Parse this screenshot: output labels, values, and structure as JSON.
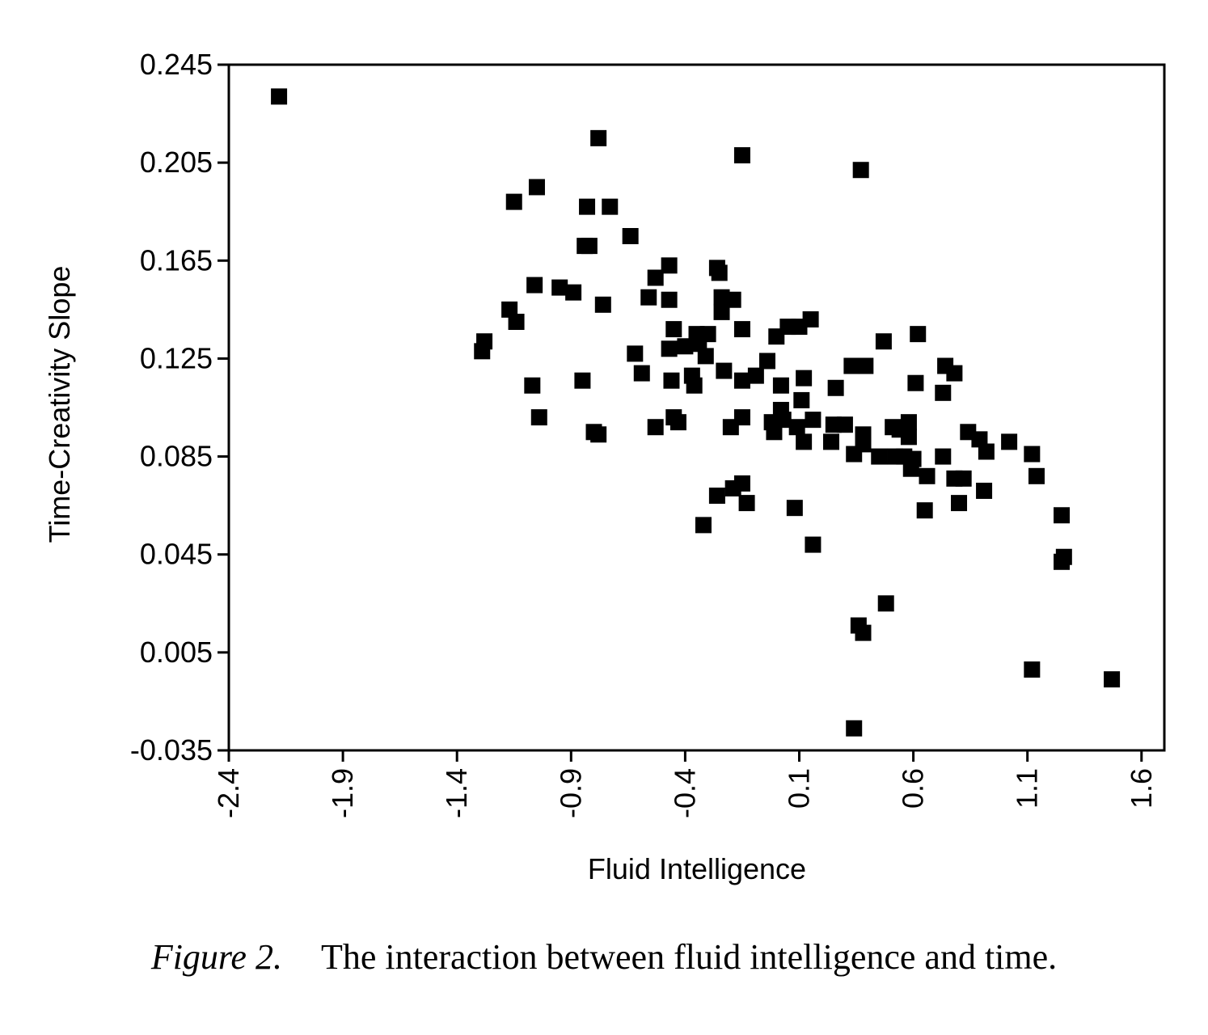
{
  "chart_data": {
    "type": "scatter",
    "xlabel": "Fluid Intelligence",
    "ylabel": "Time-Creativity Slope",
    "xlim": [
      -2.4,
      1.7
    ],
    "ylim": [
      -0.035,
      0.245
    ],
    "x_ticks": [
      "-2.4",
      "-1.9",
      "-1.4",
      "-0.9",
      "-0.4",
      "0.1",
      "0.6",
      "1.1",
      "1.6"
    ],
    "y_ticks": [
      "0.245",
      "0.205",
      "0.165",
      "0.125",
      "0.085",
      "0.045",
      "0.005",
      "-0.035"
    ],
    "grid": false,
    "legend": "none",
    "marker": "square",
    "marker_color": "#000000",
    "points": [
      [
        -2.18,
        0.232
      ],
      [
        -0.78,
        0.215
      ],
      [
        -0.15,
        0.208
      ],
      [
        0.37,
        0.202
      ],
      [
        -1.05,
        0.195
      ],
      [
        -1.15,
        0.189
      ],
      [
        -0.83,
        0.187
      ],
      [
        -0.73,
        0.187
      ],
      [
        -0.64,
        0.175
      ],
      [
        -0.84,
        0.171
      ],
      [
        -0.82,
        0.171
      ],
      [
        -0.47,
        0.163
      ],
      [
        -0.26,
        0.162
      ],
      [
        -0.25,
        0.16
      ],
      [
        -0.53,
        0.158
      ],
      [
        -1.06,
        0.155
      ],
      [
        -0.95,
        0.154
      ],
      [
        -0.89,
        0.152
      ],
      [
        -0.56,
        0.15
      ],
      [
        -0.47,
        0.149
      ],
      [
        -0.24,
        0.15
      ],
      [
        -0.19,
        0.149
      ],
      [
        -0.76,
        0.147
      ],
      [
        -1.17,
        0.145
      ],
      [
        -0.24,
        0.144
      ],
      [
        -1.14,
        0.14
      ],
      [
        0.15,
        0.141
      ],
      [
        -0.45,
        0.137
      ],
      [
        -0.15,
        0.137
      ],
      [
        0.05,
        0.138
      ],
      [
        0.1,
        0.138
      ],
      [
        -0.35,
        0.135
      ],
      [
        -0.3,
        0.135
      ],
      [
        0.0,
        0.134
      ],
      [
        0.62,
        0.135
      ],
      [
        -1.28,
        0.132
      ],
      [
        -0.34,
        0.131
      ],
      [
        -0.4,
        0.13
      ],
      [
        0.47,
        0.132
      ],
      [
        -1.29,
        0.128
      ],
      [
        -0.47,
        0.129
      ],
      [
        -0.62,
        0.127
      ],
      [
        -0.31,
        0.126
      ],
      [
        -0.04,
        0.124
      ],
      [
        0.33,
        0.122
      ],
      [
        0.39,
        0.122
      ],
      [
        0.74,
        0.122
      ],
      [
        -0.23,
        0.12
      ],
      [
        -0.59,
        0.119
      ],
      [
        -0.37,
        0.118
      ],
      [
        -0.09,
        0.118
      ],
      [
        0.78,
        0.119
      ],
      [
        -0.46,
        0.116
      ],
      [
        -0.15,
        0.116
      ],
      [
        -0.85,
        0.116
      ],
      [
        0.12,
        0.117
      ],
      [
        -1.07,
        0.114
      ],
      [
        -0.36,
        0.114
      ],
      [
        0.02,
        0.114
      ],
      [
        0.26,
        0.113
      ],
      [
        0.61,
        0.115
      ],
      [
        0.73,
        0.111
      ],
      [
        0.11,
        0.108
      ],
      [
        -1.04,
        0.101
      ],
      [
        -0.45,
        0.101
      ],
      [
        -0.15,
        0.101
      ],
      [
        0.02,
        0.104
      ],
      [
        -0.43,
        0.099
      ],
      [
        -0.2,
        0.097
      ],
      [
        -0.02,
        0.099
      ],
      [
        0.03,
        0.1
      ],
      [
        0.09,
        0.097
      ],
      [
        0.16,
        0.1
      ],
      [
        0.25,
        0.098
      ],
      [
        0.3,
        0.098
      ],
      [
        0.58,
        0.099
      ],
      [
        -0.8,
        0.095
      ],
      [
        -0.78,
        0.094
      ],
      [
        -0.53,
        0.097
      ],
      [
        -0.01,
        0.095
      ],
      [
        0.51,
        0.097
      ],
      [
        0.54,
        0.096
      ],
      [
        0.58,
        0.093
      ],
      [
        0.84,
        0.095
      ],
      [
        0.38,
        0.094
      ],
      [
        0.12,
        0.091
      ],
      [
        0.24,
        0.091
      ],
      [
        0.38,
        0.09
      ],
      [
        0.89,
        0.092
      ],
      [
        1.02,
        0.091
      ],
      [
        0.34,
        0.086
      ],
      [
        0.45,
        0.085
      ],
      [
        0.52,
        0.085
      ],
      [
        0.56,
        0.085
      ],
      [
        0.6,
        0.084
      ],
      [
        0.73,
        0.085
      ],
      [
        0.92,
        0.087
      ],
      [
        1.12,
        0.086
      ],
      [
        0.59,
        0.08
      ],
      [
        0.66,
        0.077
      ],
      [
        0.78,
        0.076
      ],
      [
        0.82,
        0.076
      ],
      [
        1.14,
        0.077
      ],
      [
        -0.15,
        0.074
      ],
      [
        -0.19,
        0.072
      ],
      [
        -0.26,
        0.069
      ],
      [
        0.91,
        0.071
      ],
      [
        -0.13,
        0.066
      ],
      [
        0.8,
        0.066
      ],
      [
        0.08,
        0.064
      ],
      [
        0.65,
        0.063
      ],
      [
        1.25,
        0.061
      ],
      [
        -0.32,
        0.057
      ],
      [
        0.16,
        0.049
      ],
      [
        1.26,
        0.044
      ],
      [
        1.25,
        0.042
      ],
      [
        0.48,
        0.025
      ],
      [
        0.36,
        0.016
      ],
      [
        0.38,
        0.013
      ],
      [
        1.12,
        -0.002
      ],
      [
        1.47,
        -0.006
      ],
      [
        0.34,
        -0.026
      ]
    ]
  },
  "caption": {
    "figure_label": "Figure 2.",
    "text": "The interaction between fluid intelligence and time."
  }
}
